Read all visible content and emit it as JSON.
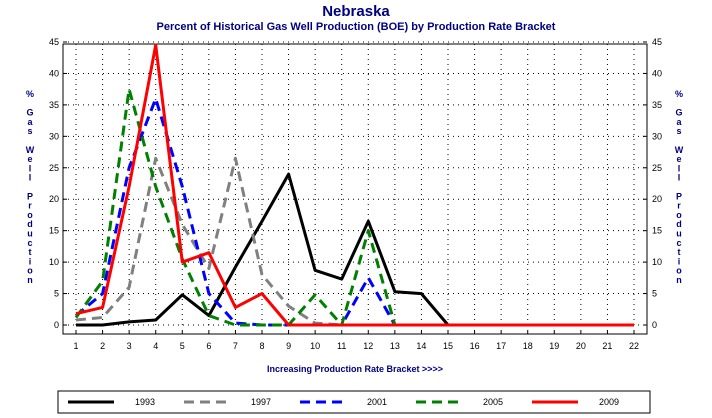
{
  "chart_data": {
    "type": "line",
    "title": "Nebraska",
    "subtitle": "Percent of Historical Gas Well Production (BOE) by Production Rate Bracket",
    "xlabel": "Increasing Production Rate Bracket >>>>",
    "ylabel": "% Gas Well Production",
    "ylabel_chars": [
      "%",
      "",
      "G",
      "a",
      "s",
      "",
      "W",
      "e",
      "l",
      "l",
      "",
      "P",
      "r",
      "o",
      "d",
      "u",
      "c",
      "t",
      "i",
      "o",
      "n"
    ],
    "x": [
      1,
      2,
      3,
      4,
      5,
      6,
      7,
      8,
      9,
      10,
      11,
      12,
      13,
      14,
      15,
      16,
      17,
      18,
      19,
      20,
      21,
      22
    ],
    "xlim": [
      1,
      22
    ],
    "ylim": [
      0,
      45
    ],
    "yticks": [
      0,
      5,
      10,
      15,
      20,
      25,
      30,
      35,
      40,
      45
    ],
    "grid": true,
    "legend_position": "bottom",
    "series": [
      {
        "name": "1993",
        "color": "#000000",
        "dash": "solid",
        "values": [
          0,
          0,
          0.5,
          0.8,
          4.8,
          1.5,
          9.2,
          16.5,
          24,
          8.7,
          7.3,
          16.5,
          5.3,
          5,
          0,
          0,
          0,
          0,
          0,
          0,
          0,
          0
        ]
      },
      {
        "name": "1997",
        "color": "#808080",
        "dash": "dashed",
        "values": [
          0.8,
          1.2,
          6,
          26.5,
          16,
          9,
          26.5,
          8,
          3,
          0.3,
          0,
          0,
          0,
          0,
          0,
          0,
          0,
          0,
          0,
          0,
          0,
          0
        ]
      },
      {
        "name": "2001",
        "color": "#0000ff",
        "dash": "dashed",
        "values": [
          1.5,
          5,
          25,
          36,
          22,
          5,
          0.3,
          0,
          0,
          0,
          0,
          7.5,
          0,
          0,
          0,
          0,
          0,
          0,
          0,
          0,
          0,
          0
        ]
      },
      {
        "name": "2005",
        "color": "#008000",
        "dash": "dashed",
        "values": [
          1.2,
          7,
          37.5,
          22,
          10.5,
          1.5,
          0,
          0,
          0,
          4.8,
          0,
          15,
          0,
          0,
          0,
          0,
          0,
          0,
          0,
          0,
          0,
          0
        ]
      },
      {
        "name": "2009",
        "color": "#ff0000",
        "dash": "solid",
        "values": [
          1.8,
          2.8,
          22,
          44.5,
          10,
          11.5,
          2.8,
          5,
          0,
          0,
          0,
          0,
          0,
          0,
          0,
          0,
          0,
          0,
          0,
          0,
          0,
          0
        ]
      }
    ]
  }
}
